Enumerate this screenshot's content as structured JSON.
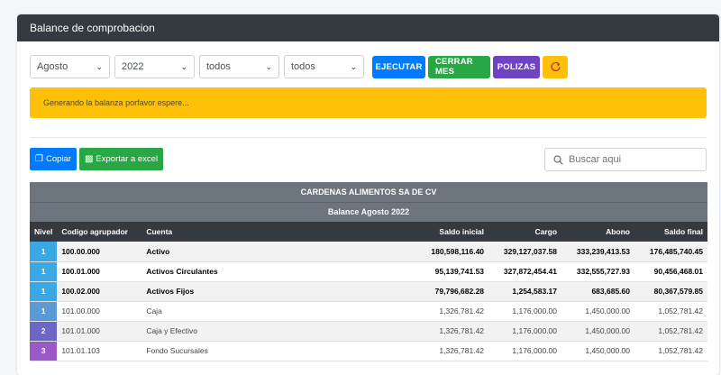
{
  "header": {
    "title": "Balance de comprobacion"
  },
  "filters": {
    "month": "Agosto",
    "year": "2022",
    "filter3": "todos",
    "filter4": "todos"
  },
  "buttons": {
    "run": "EJECUTAR",
    "close_month": "CERRAR MES",
    "policies": "POLIZAS",
    "refresh_icon": "refresh-icon"
  },
  "alert": {
    "message": "Generando la balanza porfavor espere..."
  },
  "actions": {
    "copy": "Copiar",
    "export": "Exportar a excel"
  },
  "search": {
    "placeholder": "Buscar aqui"
  },
  "table": {
    "company": "CARDENAS ALIMENTOS SA DE CV",
    "subtitle": "Balance Agosto 2022",
    "columns": [
      "Nivel",
      "Codigo agrupador",
      "Cuenta",
      "Saldo inicial",
      "Cargo",
      "Abono",
      "Saldo final"
    ],
    "rows": [
      {
        "nivel": "1",
        "codigo": "100.00.000",
        "cuenta": "Activo",
        "saldo_inicial": "180,598,116.40",
        "cargo": "329,127,037.58",
        "abono": "333,239,413.53",
        "saldo_final": "176,485,740.45",
        "bold": true,
        "color": "#3ba8e6"
      },
      {
        "nivel": "1",
        "codigo": "100.01.000",
        "cuenta": "Activos Circulantes",
        "saldo_inicial": "95,139,741.53",
        "cargo": "327,872,454.41",
        "abono": "332,555,727.93",
        "saldo_final": "90,456,468.01",
        "bold": true,
        "color": "#3ba8e6"
      },
      {
        "nivel": "1",
        "codigo": "100.02.000",
        "cuenta": "Activos Fijos",
        "saldo_inicial": "79,796,682.28",
        "cargo": "1,254,583.17",
        "abono": "683,685.60",
        "saldo_final": "80,367,579.85",
        "bold": true,
        "color": "#3ba8e6"
      },
      {
        "nivel": "1",
        "codigo": "101.00.000",
        "cuenta": "Caja",
        "saldo_inicial": "1,326,781.42",
        "cargo": "1,176,000.00",
        "abono": "1,450,000.00",
        "saldo_final": "1,052,781.42",
        "bold": false,
        "color": "#5b9bd5"
      },
      {
        "nivel": "2",
        "codigo": "101.01.000",
        "cuenta": "Caja y Efectivo",
        "saldo_inicial": "1,326,781.42",
        "cargo": "1,176,000.00",
        "abono": "1,450,000.00",
        "saldo_final": "1,052,781.42",
        "bold": false,
        "color": "#6c67c4"
      },
      {
        "nivel": "3",
        "codigo": "101.01.103",
        "cuenta": "Fondo Sucursales",
        "saldo_inicial": "1,326,781.42",
        "cargo": "1,176,000.00",
        "abono": "1,450,000.00",
        "saldo_final": "1,052,781.42",
        "bold": false,
        "color": "#9b59c6"
      }
    ]
  }
}
